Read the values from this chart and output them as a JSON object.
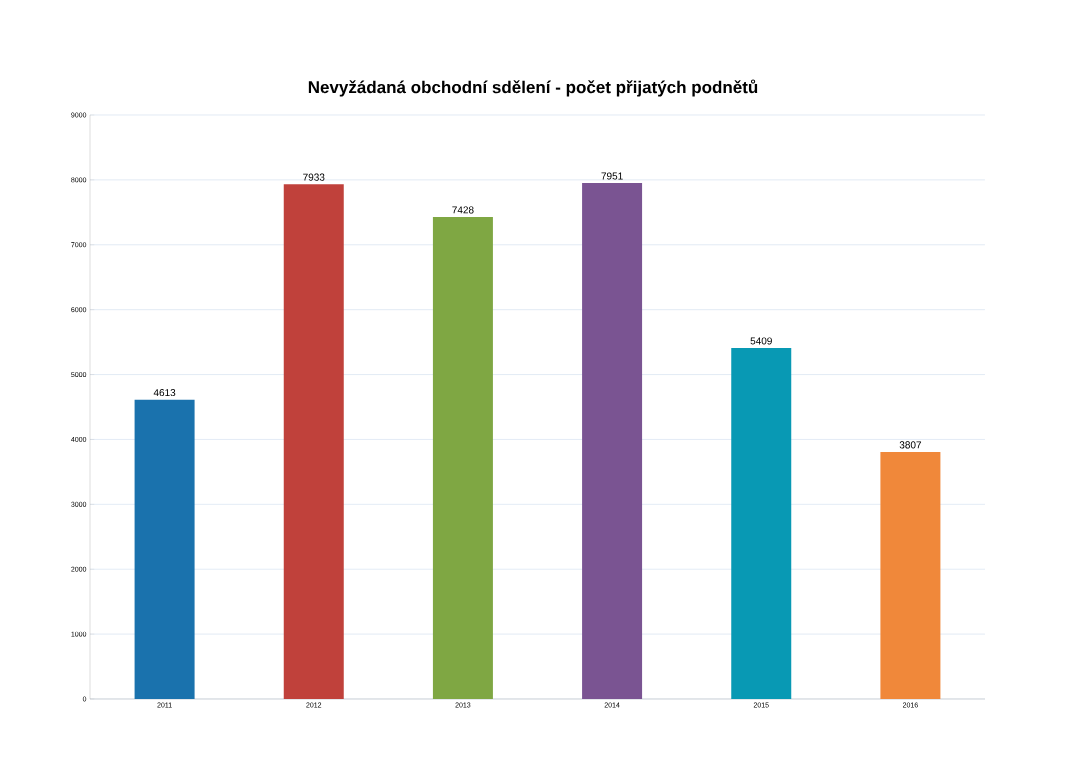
{
  "chart_data": {
    "type": "bar",
    "title": "Nevyžádaná obchodní sdělení - počet přijatých podnětů",
    "categories": [
      "2011",
      "2012",
      "2013",
      "2014",
      "2015",
      "2016"
    ],
    "values": [
      4613,
      7933,
      7428,
      7951,
      5409,
      3807
    ],
    "colors": [
      "#1a72ad",
      "#c0413b",
      "#7fa743",
      "#7a5492",
      "#0899b4",
      "#f0883a"
    ],
    "ylim": [
      0,
      9000
    ],
    "yticks": [
      0,
      1000,
      2000,
      3000,
      4000,
      5000,
      6000,
      7000,
      8000,
      9000
    ],
    "grid": "y",
    "data_labels": true
  }
}
